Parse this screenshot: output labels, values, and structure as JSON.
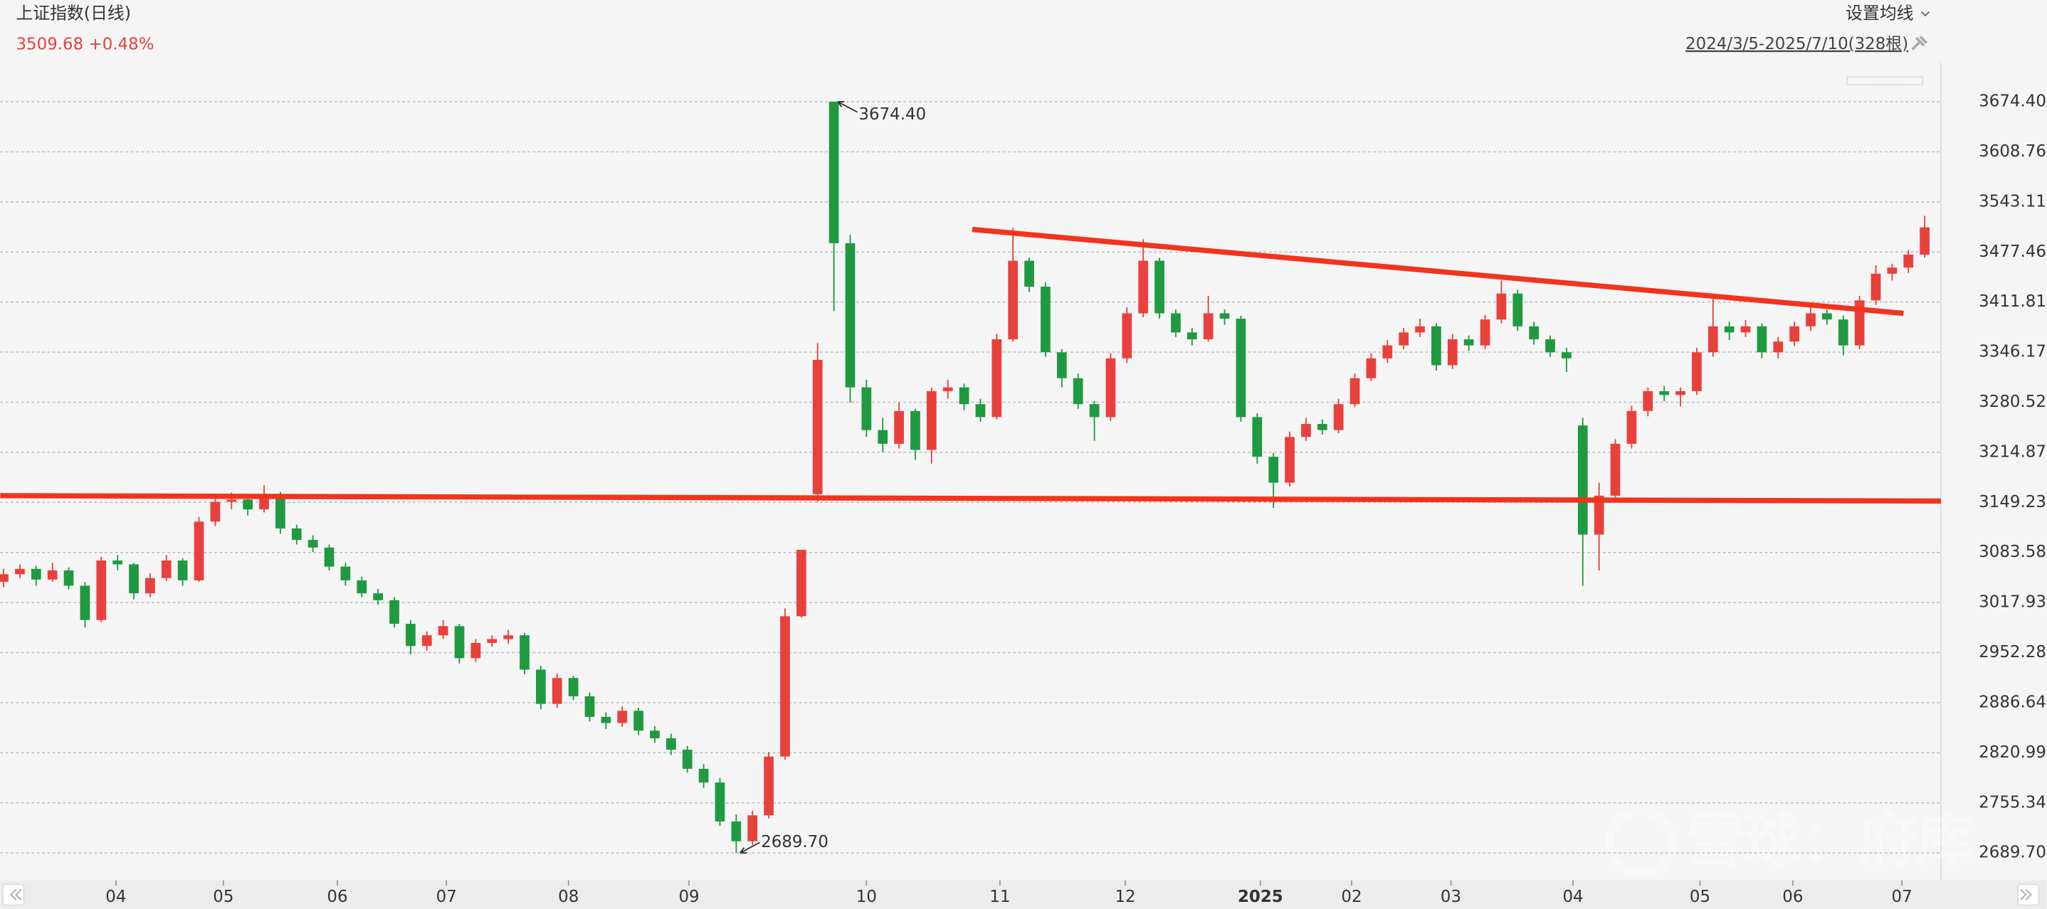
{
  "chart_data": {
    "type": "candlestick",
    "title": "上证指数(日线)",
    "price": 3509.68,
    "change": "+0.48%",
    "settings_label": "设置均线",
    "range_label": "2024/3/5-2025/7/10(328根)",
    "watermark": "雪球：府库",
    "max_label": "3674.40",
    "min_label": "2689.70",
    "up_color": "#e8413c",
    "down_color": "#1f9a40",
    "grid": true,
    "ylim": [
      2653.8,
      3725.7
    ],
    "yticks": [
      {
        "value": 3674.4,
        "label": "3674.40"
      },
      3608.76,
      3543.11,
      3477.46,
      3411.81,
      3346.17,
      3280.52,
      3214.87,
      3149.23,
      3083.58,
      3017.93,
      2952.28,
      2886.64,
      2820.99,
      2755.34,
      {
        "value": 2689.7,
        "label": "2689.70"
      }
    ],
    "xlim": [
      -0.2,
      119
    ],
    "xticks": [
      {
        "value": 6.9,
        "label": "04"
      },
      {
        "value": 13.5,
        "label": "05"
      },
      {
        "value": 20.5,
        "label": "06"
      },
      {
        "value": 27.2,
        "label": "07"
      },
      {
        "value": 34.7,
        "label": "08"
      },
      {
        "value": 42.1,
        "label": "09"
      },
      {
        "value": 53,
        "label": "10"
      },
      {
        "value": 61.2,
        "label": "11"
      },
      {
        "value": 68.9,
        "label": "12"
      },
      {
        "value": 77.2,
        "label": "2025"
      },
      {
        "value": 82.8,
        "label": "02"
      },
      {
        "value": 88.9,
        "label": "03"
      },
      {
        "value": 96.4,
        "label": "04"
      },
      {
        "value": 104.2,
        "label": "05"
      },
      {
        "value": 109.9,
        "label": "06"
      },
      {
        "value": 116.6,
        "label": "07"
      }
    ],
    "trendlines": [
      {
        "color": "#f2331d",
        "x": [
          -0.2,
          119
        ],
        "y": [
          3158,
          3151
        ]
      },
      {
        "color": "#f2331d",
        "x": [
          59.5,
          116.7
        ],
        "y": [
          3507,
          3397
        ]
      }
    ],
    "candles": [
      [
        3045,
        3062,
        3038,
        3055
      ],
      [
        3055,
        3068,
        3050,
        3062
      ],
      [
        3062,
        3066,
        3040,
        3048
      ],
      [
        3048,
        3070,
        3045,
        3060
      ],
      [
        3060,
        3064,
        3035,
        3040
      ],
      [
        3040,
        3045,
        2985,
        2995
      ],
      [
        2995,
        3078,
        2992,
        3073
      ],
      [
        3073,
        3080,
        3060,
        3068
      ],
      [
        3068,
        3070,
        3022,
        3030
      ],
      [
        3030,
        3056,
        3025,
        3050
      ],
      [
        3050,
        3080,
        3046,
        3073
      ],
      [
        3073,
        3076,
        3040,
        3047
      ],
      [
        3047,
        3130,
        3045,
        3124
      ],
      [
        3124,
        3156,
        3118,
        3150
      ],
      [
        3150,
        3162,
        3140,
        3153
      ],
      [
        3153,
        3158,
        3132,
        3140
      ],
      [
        3140,
        3172,
        3136,
        3160
      ],
      [
        3160,
        3163,
        3108,
        3115
      ],
      [
        3115,
        3120,
        3094,
        3100
      ],
      [
        3100,
        3106,
        3084,
        3090
      ],
      [
        3090,
        3094,
        3060,
        3065
      ],
      [
        3065,
        3070,
        3040,
        3047
      ],
      [
        3047,
        3052,
        3025,
        3030
      ],
      [
        3030,
        3036,
        3015,
        3021
      ],
      [
        3021,
        3025,
        2985,
        2990
      ],
      [
        2990,
        2995,
        2950,
        2961
      ],
      [
        2961,
        2980,
        2955,
        2975
      ],
      [
        2975,
        2995,
        2970,
        2987
      ],
      [
        2987,
        2990,
        2938,
        2945
      ],
      [
        2945,
        2970,
        2940,
        2965
      ],
      [
        2965,
        2975,
        2960,
        2970
      ],
      [
        2970,
        2982,
        2964,
        2975
      ],
      [
        2975,
        2978,
        2924,
        2930
      ],
      [
        2930,
        2935,
        2878,
        2885
      ],
      [
        2885,
        2925,
        2880,
        2919
      ],
      [
        2919,
        2922,
        2890,
        2895
      ],
      [
        2895,
        2900,
        2862,
        2868
      ],
      [
        2868,
        2874,
        2852,
        2860
      ],
      [
        2860,
        2882,
        2855,
        2876
      ],
      [
        2876,
        2880,
        2844,
        2850
      ],
      [
        2850,
        2856,
        2834,
        2840
      ],
      [
        2840,
        2846,
        2818,
        2825
      ],
      [
        2825,
        2830,
        2795,
        2800
      ],
      [
        2800,
        2806,
        2775,
        2782
      ],
      [
        2782,
        2788,
        2725,
        2731
      ],
      [
        2731,
        2740,
        2689.7,
        2705
      ],
      [
        2705,
        2745,
        2700,
        2739
      ],
      [
        2739,
        2822,
        2735,
        2816
      ],
      [
        2816,
        3010,
        2812,
        3000
      ],
      [
        3000,
        3087,
        2998,
        3087
      ],
      [
        3160,
        3358,
        3150,
        3336
      ],
      [
        3674.4,
        3674.4,
        3400,
        3489
      ],
      [
        3489,
        3500,
        3280,
        3300
      ],
      [
        3300,
        3310,
        3235,
        3244
      ],
      [
        3244,
        3260,
        3215,
        3226
      ],
      [
        3226,
        3280,
        3220,
        3269
      ],
      [
        3269,
        3272,
        3205,
        3218
      ],
      [
        3218,
        3300,
        3200,
        3295
      ],
      [
        3295,
        3310,
        3285,
        3300
      ],
      [
        3300,
        3305,
        3270,
        3278
      ],
      [
        3278,
        3285,
        3255,
        3261
      ],
      [
        3261,
        3370,
        3258,
        3363
      ],
      [
        3363,
        3509,
        3360,
        3466
      ],
      [
        3466,
        3470,
        3425,
        3432
      ],
      [
        3432,
        3438,
        3340,
        3346
      ],
      [
        3346,
        3350,
        3300,
        3312
      ],
      [
        3312,
        3318,
        3272,
        3278
      ],
      [
        3278,
        3282,
        3230,
        3261
      ],
      [
        3261,
        3345,
        3256,
        3338
      ],
      [
        3338,
        3405,
        3332,
        3397
      ],
      [
        3397,
        3494,
        3392,
        3466
      ],
      [
        3466,
        3470,
        3390,
        3397
      ],
      [
        3397,
        3402,
        3366,
        3372
      ],
      [
        3372,
        3378,
        3355,
        3363
      ],
      [
        3363,
        3420,
        3360,
        3397
      ],
      [
        3397,
        3402,
        3382,
        3390
      ],
      [
        3390,
        3394,
        3255,
        3261
      ],
      [
        3261,
        3266,
        3200,
        3209
      ],
      [
        3209,
        3214,
        3142,
        3175
      ],
      [
        3175,
        3242,
        3170,
        3235
      ],
      [
        3235,
        3260,
        3230,
        3252
      ],
      [
        3252,
        3258,
        3238,
        3244
      ],
      [
        3244,
        3285,
        3240,
        3278
      ],
      [
        3278,
        3318,
        3274,
        3312
      ],
      [
        3312,
        3345,
        3308,
        3338
      ],
      [
        3338,
        3362,
        3332,
        3355
      ],
      [
        3355,
        3378,
        3350,
        3372
      ],
      [
        3372,
        3390,
        3366,
        3380
      ],
      [
        3380,
        3384,
        3322,
        3329
      ],
      [
        3329,
        3370,
        3324,
        3363
      ],
      [
        3363,
        3368,
        3348,
        3355
      ],
      [
        3355,
        3395,
        3350,
        3389
      ],
      [
        3389,
        3440,
        3384,
        3423
      ],
      [
        3423,
        3428,
        3374,
        3380
      ],
      [
        3380,
        3386,
        3356,
        3363
      ],
      [
        3363,
        3368,
        3340,
        3346
      ],
      [
        3346,
        3352,
        3320,
        3338
      ],
      [
        3250,
        3260,
        3040,
        3107
      ],
      [
        3107,
        3175,
        3060,
        3158
      ],
      [
        3158,
        3232,
        3150,
        3226
      ],
      [
        3226,
        3276,
        3220,
        3269
      ],
      [
        3269,
        3300,
        3262,
        3295
      ],
      [
        3295,
        3302,
        3282,
        3290
      ],
      [
        3290,
        3300,
        3275,
        3295
      ],
      [
        3295,
        3352,
        3290,
        3346
      ],
      [
        3346,
        3418,
        3340,
        3380
      ],
      [
        3380,
        3386,
        3362,
        3372
      ],
      [
        3372,
        3388,
        3366,
        3380
      ],
      [
        3380,
        3384,
        3338,
        3346
      ],
      [
        3346,
        3366,
        3338,
        3360
      ],
      [
        3360,
        3386,
        3354,
        3380
      ],
      [
        3380,
        3410,
        3374,
        3397
      ],
      [
        3397,
        3402,
        3382,
        3389
      ],
      [
        3389,
        3394,
        3342,
        3355
      ],
      [
        3355,
        3420,
        3350,
        3414
      ],
      [
        3414,
        3460,
        3408,
        3449
      ],
      [
        3449,
        3462,
        3440,
        3457
      ],
      [
        3457,
        3480,
        3450,
        3474
      ],
      [
        3474,
        3525,
        3470,
        3509.68
      ]
    ]
  }
}
